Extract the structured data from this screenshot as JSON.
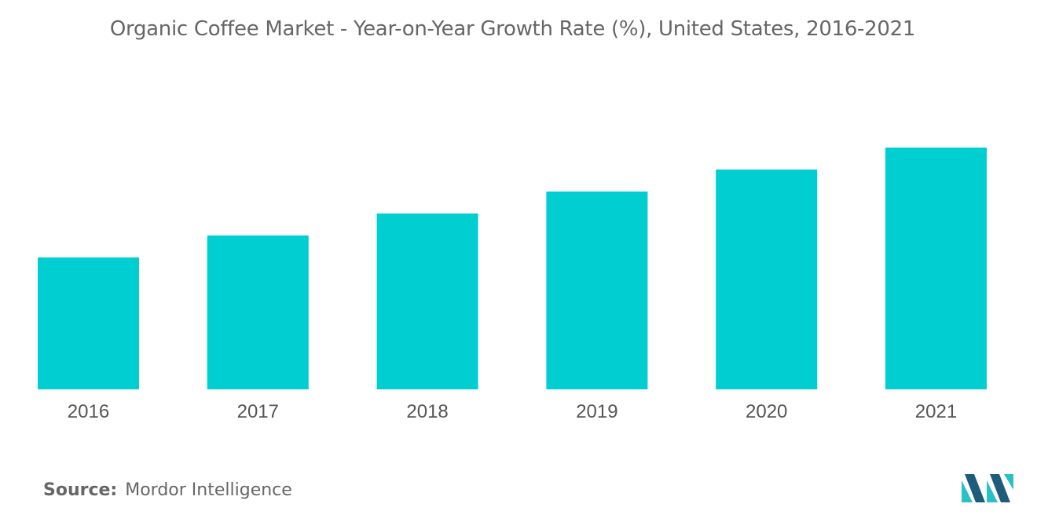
{
  "title": "Organic Coffee Market - Year-on-Year Growth Rate (%), United States, 2016-2021",
  "source": {
    "label": "Source:",
    "name": "Mordor Intelligence"
  },
  "colors": {
    "bar": "#00CED1",
    "logo_dark": "#1F5B7A",
    "logo_light": "#2BBFC6"
  },
  "chart_data": {
    "type": "bar",
    "title": "Organic Coffee Market - Year-on-Year Growth Rate (%), United States, 2016-2021",
    "categories": [
      "2016",
      "2017",
      "2018",
      "2019",
      "2020",
      "2021"
    ],
    "values": [
      6.0,
      7.0,
      8.0,
      9.0,
      10.0,
      11.0
    ],
    "xlabel": "",
    "ylabel": "",
    "ylim": [
      0,
      12
    ],
    "grid": false,
    "legend": "none"
  }
}
